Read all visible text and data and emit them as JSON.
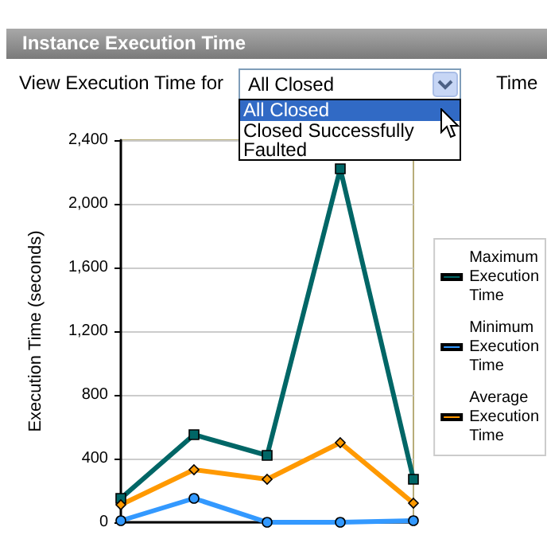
{
  "chart_data": {
    "type": "line",
    "title": "Instance Execution Time",
    "ylabel": "Execution Time (seconds)",
    "annotations": [
      "View Execution Time for",
      "All Closed",
      "All Closed",
      "Closed Successfully",
      "Faulted",
      "Time"
    ],
    "categories": [
      null,
      null,
      null,
      null,
      null
    ],
    "series": [
      {
        "name": "Maximum Execution Time",
        "color": "#006666",
        "marker": "square",
        "values": [
          150,
          550,
          420,
          2220,
          270
        ]
      },
      {
        "name": "Minimum Execution Time",
        "color": "#3399ff",
        "marker": "circle",
        "values": [
          10,
          150,
          0,
          0,
          10
        ]
      },
      {
        "name": "Average Execution Time",
        "color": "#ff9900",
        "marker": "diamond",
        "values": [
          110,
          330,
          270,
          500,
          120
        ]
      }
    ],
    "ylim": [
      0,
      2400
    ],
    "yticks": [
      0,
      400,
      800,
      {
        "value": 1200,
        "label": "1,200"
      },
      {
        "value": 1600,
        "label": "1,600"
      },
      {
        "value": 2000,
        "label": "2,000"
      },
      {
        "value": 2400,
        "label": "2,400"
      }
    ],
    "grid": "y",
    "legend": "right",
    "line_style": "solid"
  }
}
